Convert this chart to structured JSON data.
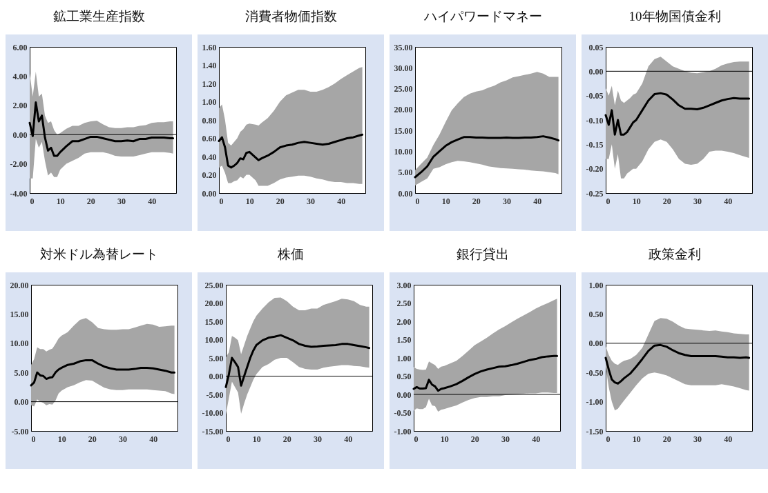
{
  "chart_data": [
    {
      "type": "line",
      "title": "鉱工業生産指数",
      "xlim": [
        0,
        48
      ],
      "xticks": [
        0,
        10,
        20,
        30,
        40
      ],
      "ylim": [
        -4,
        6
      ],
      "yticks": [
        {
          "value": -4,
          "label": "-4.00"
        },
        {
          "value": -2,
          "label": "-2.00"
        },
        {
          "value": 0,
          "label": "0.00"
        },
        {
          "value": 2,
          "label": "2.00"
        },
        {
          "value": 4,
          "label": "4.00"
        },
        {
          "value": 6,
          "label": "6.00"
        }
      ],
      "ref_lines": [
        {
          "axis": "y",
          "value": 0
        }
      ],
      "series": [
        {
          "color": "#000000",
          "x": [
            0,
            1,
            2,
            3,
            4,
            5,
            6,
            7,
            8,
            9,
            10,
            12,
            14,
            16,
            18,
            20,
            22,
            24,
            26,
            28,
            30,
            32,
            34,
            36,
            38,
            40,
            42,
            44,
            46,
            47
          ],
          "values": [
            0.8,
            -0.1,
            2.2,
            0.9,
            1.3,
            -0.2,
            -1.1,
            -0.9,
            -1.45,
            -1.45,
            -1.2,
            -0.8,
            -0.45,
            -0.45,
            -0.3,
            -0.15,
            -0.15,
            -0.25,
            -0.35,
            -0.45,
            -0.45,
            -0.4,
            -0.45,
            -0.3,
            -0.3,
            -0.2,
            -0.2,
            -0.2,
            -0.25,
            -0.25
          ],
          "upper": [
            4.2,
            2.6,
            4.3,
            2.6,
            2.8,
            1.3,
            0.8,
            0.9,
            0.3,
            0.0,
            0.1,
            0.4,
            0.6,
            0.6,
            0.8,
            0.9,
            0.95,
            0.7,
            0.5,
            0.45,
            0.45,
            0.5,
            0.5,
            0.6,
            0.65,
            0.8,
            0.85,
            0.85,
            0.9,
            0.9
          ],
          "lower": [
            -3.0,
            -3.0,
            -0.3,
            -0.9,
            -0.5,
            -1.8,
            -2.8,
            -2.6,
            -2.9,
            -2.9,
            -2.4,
            -2.0,
            -1.8,
            -1.6,
            -1.3,
            -1.2,
            -1.2,
            -1.2,
            -1.3,
            -1.45,
            -1.5,
            -1.5,
            -1.5,
            -1.4,
            -1.3,
            -1.2,
            -1.2,
            -1.2,
            -1.25,
            -1.3
          ]
        }
      ]
    },
    {
      "type": "line",
      "title": "消費者物価指数",
      "xlim": [
        0,
        48
      ],
      "xticks": [
        0,
        10,
        20,
        30,
        40
      ],
      "ylim": [
        0,
        1.6
      ],
      "yticks": [
        {
          "value": 0,
          "label": "0.00"
        },
        {
          "value": 0.2,
          "label": "0.20"
        },
        {
          "value": 0.4,
          "label": "0.40"
        },
        {
          "value": 0.6,
          "label": "0.60"
        },
        {
          "value": 0.8,
          "label": "0.80"
        },
        {
          "value": 1,
          "label": "1.00"
        },
        {
          "value": 1.2,
          "label": "1.20"
        },
        {
          "value": 1.4,
          "label": "1.40"
        },
        {
          "value": 1.6,
          "label": "1.60"
        }
      ],
      "series": [
        {
          "color": "#000000",
          "x": [
            0,
            1,
            2,
            3,
            4,
            5,
            6,
            7,
            8,
            9,
            10,
            12,
            13,
            14,
            16,
            18,
            20,
            22,
            24,
            26,
            28,
            30,
            32,
            34,
            36,
            38,
            40,
            42,
            44,
            46,
            47
          ],
          "values": [
            0.57,
            0.61,
            0.5,
            0.3,
            0.28,
            0.3,
            0.33,
            0.38,
            0.37,
            0.44,
            0.45,
            0.39,
            0.36,
            0.38,
            0.41,
            0.45,
            0.5,
            0.52,
            0.53,
            0.55,
            0.56,
            0.55,
            0.54,
            0.53,
            0.54,
            0.56,
            0.58,
            0.6,
            0.61,
            0.63,
            0.64
          ],
          "upper": [
            0.93,
            0.97,
            0.8,
            0.55,
            0.52,
            0.56,
            0.6,
            0.67,
            0.7,
            0.75,
            0.76,
            0.75,
            0.74,
            0.77,
            0.82,
            0.9,
            1.0,
            1.07,
            1.1,
            1.13,
            1.13,
            1.11,
            1.11,
            1.13,
            1.16,
            1.2,
            1.25,
            1.29,
            1.33,
            1.37,
            1.38
          ],
          "lower": [
            0.28,
            0.3,
            0.22,
            0.11,
            0.11,
            0.13,
            0.14,
            0.18,
            0.16,
            0.2,
            0.2,
            0.14,
            0.08,
            0.08,
            0.08,
            0.11,
            0.15,
            0.17,
            0.18,
            0.19,
            0.19,
            0.18,
            0.16,
            0.15,
            0.13,
            0.12,
            0.12,
            0.11,
            0.11,
            0.1,
            0.1
          ]
        }
      ]
    },
    {
      "type": "line",
      "title": "ハイパワードマネー",
      "xlim": [
        0,
        48
      ],
      "xticks": [
        0,
        10,
        20,
        30,
        40
      ],
      "ylim": [
        0,
        35
      ],
      "yticks": [
        {
          "value": 0,
          "label": "0.00"
        },
        {
          "value": 5,
          "label": "5.00"
        },
        {
          "value": 10,
          "label": "10.00"
        },
        {
          "value": 15,
          "label": "15.00"
        },
        {
          "value": 20,
          "label": "20.00"
        },
        {
          "value": 25,
          "label": "25.00"
        },
        {
          "value": 30,
          "label": "30.00"
        },
        {
          "value": 35,
          "label": "35.00"
        }
      ],
      "series": [
        {
          "color": "#000000",
          "x": [
            0,
            2,
            4,
            6,
            8,
            10,
            12,
            14,
            16,
            18,
            20,
            22,
            24,
            26,
            28,
            30,
            32,
            34,
            36,
            38,
            40,
            42,
            44,
            46,
            47
          ],
          "values": [
            3.8,
            5.0,
            6.4,
            8.7,
            10.0,
            11.3,
            12.2,
            12.8,
            13.4,
            13.4,
            13.3,
            13.3,
            13.2,
            13.2,
            13.2,
            13.3,
            13.2,
            13.2,
            13.3,
            13.3,
            13.4,
            13.6,
            13.3,
            12.9,
            12.6
          ],
          "upper": [
            5.5,
            7,
            8.5,
            11.5,
            14,
            17,
            19.8,
            21.5,
            23,
            23.8,
            24.3,
            24.6,
            25.2,
            25.7,
            26.5,
            27,
            27.7,
            28,
            28.3,
            28.6,
            29,
            28.6,
            27.8,
            27.8,
            27.8
          ],
          "lower": [
            1.8,
            2.7,
            3.5,
            5.8,
            6.2,
            6.9,
            7.4,
            7.7,
            7.6,
            7.4,
            7.1,
            6.8,
            6.4,
            6.2,
            6.0,
            5.9,
            5.8,
            5.7,
            5.6,
            5.4,
            5.3,
            5.2,
            5.0,
            4.8,
            4.5
          ]
        }
      ]
    },
    {
      "type": "line",
      "title": "10年物国債金利",
      "xlim": [
        0,
        48
      ],
      "xticks": [
        0,
        10,
        20,
        30,
        40
      ],
      "ylim": [
        -0.25,
        0.05
      ],
      "yticks": [
        {
          "value": -0.25,
          "label": "-0.25"
        },
        {
          "value": -0.2,
          "label": "-0.20"
        },
        {
          "value": -0.15,
          "label": "-0.15"
        },
        {
          "value": -0.1,
          "label": "-0.10"
        },
        {
          "value": -0.05,
          "label": "-0.05"
        },
        {
          "value": 0,
          "label": "0.00"
        },
        {
          "value": 0.05,
          "label": "0.05"
        }
      ],
      "ref_lines": [
        {
          "axis": "y",
          "value": 0
        }
      ],
      "series": [
        {
          "color": "#000000",
          "x": [
            0,
            1,
            2,
            3,
            4,
            5,
            6,
            7,
            8,
            9,
            10,
            12,
            14,
            16,
            18,
            20,
            22,
            24,
            26,
            28,
            30,
            32,
            34,
            36,
            38,
            40,
            42,
            44,
            46,
            47
          ],
          "values": [
            -0.09,
            -0.11,
            -0.08,
            -0.13,
            -0.1,
            -0.13,
            -0.13,
            -0.125,
            -0.115,
            -0.105,
            -0.1,
            -0.08,
            -0.06,
            -0.047,
            -0.045,
            -0.048,
            -0.058,
            -0.07,
            -0.077,
            -0.077,
            -0.078,
            -0.075,
            -0.07,
            -0.065,
            -0.06,
            -0.057,
            -0.055,
            -0.056,
            -0.056,
            -0.056
          ],
          "upper": [
            -0.035,
            -0.05,
            -0.03,
            -0.07,
            -0.04,
            -0.06,
            -0.065,
            -0.06,
            -0.055,
            -0.048,
            -0.045,
            -0.025,
            0.01,
            0.025,
            0.03,
            0.02,
            0.01,
            0.005,
            0.0,
            -0.003,
            -0.004,
            -0.002,
            0.0,
            0.005,
            0.012,
            0.016,
            0.019,
            0.02,
            0.02,
            0.02
          ],
          "lower": [
            -0.18,
            -0.18,
            -0.15,
            -0.2,
            -0.17,
            -0.22,
            -0.22,
            -0.21,
            -0.205,
            -0.2,
            -0.2,
            -0.185,
            -0.16,
            -0.145,
            -0.14,
            -0.145,
            -0.16,
            -0.18,
            -0.19,
            -0.192,
            -0.19,
            -0.18,
            -0.165,
            -0.163,
            -0.163,
            -0.165,
            -0.168,
            -0.172,
            -0.176,
            -0.178
          ]
        }
      ]
    },
    {
      "type": "line",
      "title": "対米ドル為替レート",
      "xlim": [
        0,
        48
      ],
      "xticks": [
        0,
        10,
        20,
        30,
        40
      ],
      "ylim": [
        -5,
        20
      ],
      "yticks": [
        {
          "value": -5,
          "label": "-5.00"
        },
        {
          "value": 0,
          "label": "0.00"
        },
        {
          "value": 5,
          "label": "5.00"
        },
        {
          "value": 10,
          "label": "10.00"
        },
        {
          "value": 15,
          "label": "15.00"
        },
        {
          "value": 20,
          "label": "20.00"
        }
      ],
      "ref_lines": [
        {
          "axis": "y",
          "value": 0
        }
      ],
      "series": [
        {
          "color": "#000000",
          "x": [
            0,
            1,
            2,
            3,
            4,
            5,
            6,
            7,
            8,
            9,
            10,
            12,
            14,
            16,
            18,
            20,
            22,
            24,
            26,
            28,
            30,
            32,
            34,
            36,
            38,
            40,
            42,
            44,
            46,
            47
          ],
          "values": [
            2.8,
            3.3,
            5.0,
            4.5,
            4.4,
            3.9,
            4.1,
            4.2,
            5.0,
            5.5,
            5.8,
            6.3,
            6.5,
            6.9,
            7.1,
            7.1,
            6.5,
            6.0,
            5.7,
            5.5,
            5.5,
            5.5,
            5.6,
            5.8,
            5.8,
            5.7,
            5.5,
            5.3,
            5.0,
            5.0
          ],
          "upper": [
            6.3,
            7.3,
            9.3,
            9.0,
            9.0,
            8.6,
            8.9,
            9.1,
            9.9,
            10.8,
            11.3,
            11.9,
            13.0,
            14.0,
            14.3,
            13.6,
            12.6,
            12.4,
            12.3,
            12.3,
            12.4,
            12.4,
            12.7,
            13.0,
            13.3,
            13.2,
            12.8,
            12.9,
            13.0,
            13.0
          ],
          "lower": [
            -0.6,
            -0.8,
            0.4,
            0.0,
            -0.2,
            -0.6,
            -0.4,
            -0.5,
            0.2,
            1.4,
            1.9,
            2.5,
            2.8,
            3.3,
            3.7,
            3.6,
            3.0,
            2.4,
            2.1,
            2.0,
            2.0,
            2.1,
            2.1,
            2.1,
            2.1,
            2.0,
            1.9,
            1.8,
            1.4,
            1.3
          ]
        }
      ]
    },
    {
      "type": "line",
      "title": "株価",
      "xlim": [
        0,
        48
      ],
      "xticks": [
        0,
        10,
        20,
        30,
        40
      ],
      "ylim": [
        -15,
        25
      ],
      "yticks": [
        {
          "value": -15,
          "label": "-15.00"
        },
        {
          "value": -10,
          "label": "-10.00"
        },
        {
          "value": -5,
          "label": "-5.00"
        },
        {
          "value": 0,
          "label": "0.00"
        },
        {
          "value": 5,
          "label": "5.00"
        },
        {
          "value": 10,
          "label": "10.00"
        },
        {
          "value": 15,
          "label": "15.00"
        },
        {
          "value": 20,
          "label": "20.00"
        },
        {
          "value": 25,
          "label": "25.00"
        }
      ],
      "ref_lines": [
        {
          "axis": "y",
          "value": 0
        }
      ],
      "series": [
        {
          "color": "#000000",
          "x": [
            0,
            1,
            2,
            3,
            4,
            5,
            6,
            7,
            8,
            9,
            10,
            12,
            14,
            16,
            18,
            20,
            22,
            24,
            26,
            28,
            30,
            32,
            34,
            36,
            38,
            40,
            42,
            44,
            46,
            47
          ],
          "values": [
            -3.0,
            0.5,
            5.0,
            3.8,
            2.5,
            -2.6,
            0.0,
            2.5,
            5.0,
            7.0,
            8.5,
            9.8,
            10.5,
            10.8,
            11.2,
            10.5,
            9.8,
            8.8,
            8.3,
            8.0,
            8.1,
            8.3,
            8.4,
            8.5,
            8.8,
            8.8,
            8.5,
            8.2,
            7.9,
            7.7
          ],
          "upper": [
            5.2,
            6.5,
            11.0,
            10.5,
            9.8,
            6.0,
            8.5,
            11.0,
            13.0,
            15.0,
            16.5,
            18.5,
            20.2,
            21.4,
            21.5,
            20.5,
            19.0,
            18.0,
            18.0,
            18.5,
            18.5,
            19.5,
            20.0,
            20.5,
            21.2,
            21.0,
            20.5,
            19.5,
            19.0,
            19.0
          ],
          "lower": [
            -10.5,
            -6.0,
            -1.5,
            -3.0,
            -4.5,
            -10.3,
            -7.5,
            -5.0,
            -3.0,
            -1.0,
            0.5,
            2.5,
            3.3,
            4.5,
            5.0,
            5.0,
            3.8,
            2.5,
            2.0,
            1.8,
            1.8,
            2.3,
            2.6,
            2.8,
            3.0,
            3.0,
            2.8,
            2.7,
            2.4,
            2.3
          ]
        }
      ]
    },
    {
      "type": "line",
      "title": "銀行貸出",
      "xlim": [
        0,
        48
      ],
      "xticks": [
        0,
        10,
        20,
        30,
        40
      ],
      "ylim": [
        -1,
        3
      ],
      "yticks": [
        {
          "value": -1,
          "label": "-1.00"
        },
        {
          "value": -0.5,
          "label": "-0.50"
        },
        {
          "value": 0,
          "label": "0.00"
        },
        {
          "value": 0.5,
          "label": "0.50"
        },
        {
          "value": 1,
          "label": "1.00"
        },
        {
          "value": 1.5,
          "label": "1.50"
        },
        {
          "value": 2,
          "label": "2.00"
        },
        {
          "value": 2.5,
          "label": "2.50"
        },
        {
          "value": 3,
          "label": "3.00"
        }
      ],
      "ref_lines": [
        {
          "axis": "y",
          "value": 0
        }
      ],
      "series": [
        {
          "color": "#000000",
          "x": [
            0,
            1,
            2,
            3,
            4,
            5,
            6,
            7,
            8,
            9,
            10,
            12,
            14,
            16,
            18,
            20,
            22,
            24,
            26,
            28,
            30,
            32,
            34,
            36,
            38,
            40,
            42,
            44,
            46,
            47
          ],
          "values": [
            0.15,
            0.2,
            0.16,
            0.16,
            0.17,
            0.4,
            0.27,
            0.22,
            0.1,
            0.15,
            0.17,
            0.22,
            0.28,
            0.37,
            0.47,
            0.56,
            0.63,
            0.68,
            0.72,
            0.76,
            0.77,
            0.8,
            0.84,
            0.89,
            0.94,
            0.97,
            1.02,
            1.04,
            1.05,
            1.05
          ],
          "upper": [
            0.75,
            0.7,
            0.68,
            0.67,
            0.68,
            0.9,
            0.85,
            0.8,
            0.7,
            0.76,
            0.78,
            0.85,
            0.92,
            1.05,
            1.2,
            1.35,
            1.45,
            1.55,
            1.67,
            1.78,
            1.87,
            1.97,
            2.07,
            2.16,
            2.25,
            2.35,
            2.43,
            2.5,
            2.58,
            2.62
          ],
          "lower": [
            -0.45,
            -0.38,
            -0.4,
            -0.4,
            -0.35,
            -0.12,
            -0.3,
            -0.32,
            -0.47,
            -0.42,
            -0.4,
            -0.35,
            -0.3,
            -0.22,
            -0.15,
            -0.1,
            -0.07,
            -0.07,
            -0.05,
            -0.05,
            -0.02,
            -0.01,
            0.0,
            0.02,
            0.03,
            0.03,
            0.05,
            0.05,
            0.04,
            0.04
          ]
        }
      ]
    },
    {
      "type": "line",
      "title": "政策金利",
      "xlim": [
        0,
        48
      ],
      "xticks": [
        0,
        10,
        20,
        30,
        40
      ],
      "ylim": [
        -1.5,
        1
      ],
      "yticks": [
        {
          "value": -1.5,
          "label": "-1.50"
        },
        {
          "value": -1,
          "label": "-1.00"
        },
        {
          "value": -0.5,
          "label": "-0.50"
        },
        {
          "value": 0,
          "label": "0.00"
        },
        {
          "value": 0.5,
          "label": "0.50"
        },
        {
          "value": 1,
          "label": "1.00"
        }
      ],
      "ref_lines": [
        {
          "axis": "y",
          "value": 0
        }
      ],
      "series": [
        {
          "color": "#000000",
          "x": [
            0,
            1,
            2,
            3,
            4,
            5,
            6,
            8,
            10,
            12,
            14,
            16,
            18,
            20,
            22,
            24,
            26,
            28,
            30,
            32,
            34,
            36,
            38,
            40,
            42,
            44,
            46,
            47
          ],
          "values": [
            -0.25,
            -0.45,
            -0.62,
            -0.67,
            -0.69,
            -0.65,
            -0.6,
            -0.52,
            -0.4,
            -0.27,
            -0.13,
            -0.04,
            -0.03,
            -0.06,
            -0.12,
            -0.17,
            -0.2,
            -0.22,
            -0.22,
            -0.22,
            -0.22,
            -0.22,
            -0.23,
            -0.24,
            -0.24,
            -0.25,
            -0.24,
            -0.25
          ],
          "upper": [
            -0.05,
            -0.2,
            -0.3,
            -0.35,
            -0.37,
            -0.33,
            -0.3,
            -0.27,
            -0.2,
            -0.08,
            0.15,
            0.38,
            0.43,
            0.42,
            0.37,
            0.3,
            0.25,
            0.24,
            0.23,
            0.22,
            0.21,
            0.22,
            0.2,
            0.19,
            0.17,
            0.16,
            0.15,
            0.15
          ],
          "lower": [
            -0.4,
            -0.75,
            -1.0,
            -1.15,
            -1.12,
            -1.05,
            -0.98,
            -0.85,
            -0.72,
            -0.6,
            -0.52,
            -0.5,
            -0.52,
            -0.55,
            -0.6,
            -0.65,
            -0.7,
            -0.72,
            -0.72,
            -0.72,
            -0.72,
            -0.72,
            -0.7,
            -0.72,
            -0.74,
            -0.77,
            -0.8,
            -0.81
          ]
        }
      ]
    }
  ]
}
